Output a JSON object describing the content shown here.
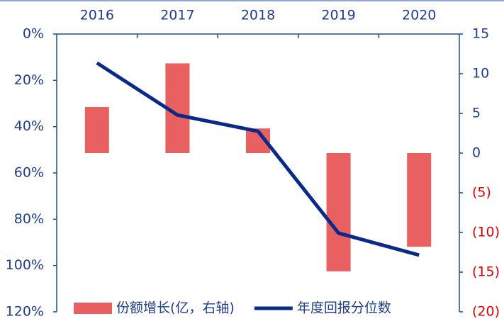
{
  "chart_data": {
    "type": "bar-line",
    "categories": [
      "2016",
      "2017",
      "2018",
      "2019",
      "2020"
    ],
    "series": [
      {
        "name": "份额增长(亿，右轴)",
        "type": "bar",
        "axis": "y2",
        "color": "#e8605f",
        "values": [
          5.8,
          11.3,
          3.1,
          -14.9,
          -11.8
        ]
      },
      {
        "name": "年度回报分位数",
        "type": "line",
        "axis": "y",
        "color": "#0a2a8a",
        "values": [
          12.5,
          35,
          42,
          86,
          95.5
        ]
      }
    ],
    "ylim": [
      0,
      120
    ],
    "y_inverted": true,
    "yticks": [
      {
        "value": 0,
        "label": "0%"
      },
      {
        "value": 20,
        "label": "20%"
      },
      {
        "value": 40,
        "label": "40%"
      },
      {
        "value": 60,
        "label": "60%"
      },
      {
        "value": 80,
        "label": "80%"
      },
      {
        "value": 100,
        "label": "100%"
      },
      {
        "value": 120,
        "label": "120%"
      }
    ],
    "y2lim": [
      -20,
      15
    ],
    "y2ticks": [
      15,
      10,
      5,
      0,
      {
        "value": -5,
        "label": "(5)"
      },
      {
        "value": -10,
        "label": "(10)"
      },
      {
        "value": -15,
        "label": "(15)"
      },
      {
        "value": -20,
        "label": "(20)"
      }
    ],
    "y2_negative_label_color": "#e00000",
    "axis_color": "#1f4aa0",
    "legend": "lower center"
  }
}
